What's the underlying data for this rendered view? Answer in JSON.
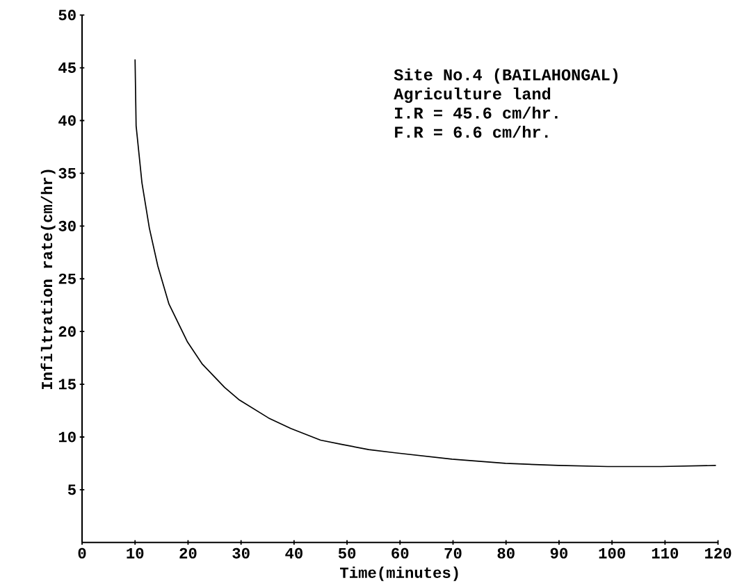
{
  "chart_data": {
    "type": "line",
    "xlabel": "Time(minutes)",
    "ylabel": "Infiltration rate(cm/hr)",
    "annotations": [
      "Site No.4 (BAILAHONGAL)",
      "Agriculture land",
      "I.R = 45.6 cm/hr.",
      "F.R =  6.6 cm/hr."
    ],
    "x": [
      10,
      10.2,
      11.3,
      12.7,
      14.3,
      16.4,
      19.9,
      22.7,
      26.9,
      29.7,
      35.2,
      39.4,
      45,
      49,
      54.1,
      59.1,
      69.8,
      79.9,
      89.9,
      99.2,
      109.2,
      119.6
    ],
    "series": [
      {
        "color": "#000000",
        "values": [
          45.8,
          39.5,
          34.1,
          29.8,
          26.2,
          22.6,
          19.0,
          16.9,
          14.7,
          13.5,
          11.8,
          10.8,
          9.7,
          9.3,
          8.8,
          8.5,
          7.9,
          7.5,
          7.3,
          7.2,
          7.2,
          7.3
        ]
      }
    ],
    "xlim": [
      0,
      120
    ],
    "ylim": [
      0,
      50
    ],
    "xticks": [
      0,
      10,
      20,
      30,
      40,
      50,
      60,
      70,
      80,
      90,
      100,
      110,
      120
    ],
    "yticks": [
      5,
      10,
      15,
      20,
      25,
      30,
      35,
      40,
      45,
      50
    ],
    "grid": false,
    "marker": "none",
    "line_style": "solid"
  }
}
